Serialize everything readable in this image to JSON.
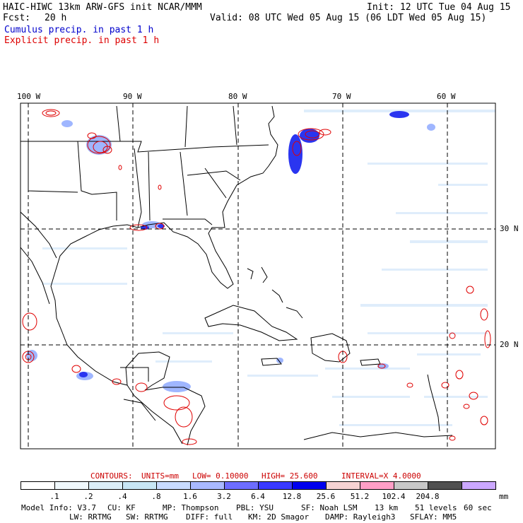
{
  "header": {
    "title_left": "HAIC-HIWC 13km ARW-GFS init   NCAR/MMM",
    "init": "Init: 12 UTC Tue 04 Aug 15",
    "fcst_label": "Fcst:",
    "fcst_value": "20 h",
    "valid": "Valid: 08 UTC Wed 05 Aug 15 (06 LDT Wed 05 Aug 15)",
    "legend_cumulus": "Cumulus precip. in past 1 h",
    "legend_explicit": "Explicit precip. in past 1 h"
  },
  "colors": {
    "cumulus_text": "#0000cc",
    "explicit_text": "#dd0000",
    "contour": "#e00000",
    "precip_light": "#dcecfb",
    "precip_mid": "#9fb6ff",
    "precip_heavy": "#2a35f0"
  },
  "axes": {
    "lon_labels": [
      "100 W",
      "90 W",
      "80 W",
      "70 W",
      "60 W"
    ],
    "lat_labels": [
      "30 N",
      "20 N"
    ]
  },
  "contours_line": {
    "label": "CONTOURS:",
    "units": "UNITS=mm",
    "low": "LOW= 0.10000",
    "high": "HIGH=  25.600",
    "interval": "INTERVAL=X  4.0000"
  },
  "color_scale": {
    "colors": [
      "#ffffff",
      "#f0f8fc",
      "#dbeef8",
      "#c8e6f5",
      "#c9dbff",
      "#a9b9ff",
      "#6d6dff",
      "#3a3aff",
      "#0000ee",
      "#f6d3d3",
      "#ff9fc7",
      "#c8c8c8",
      "#505050",
      "#cca8ff"
    ],
    "ticks": [
      ".1",
      ".2",
      ".4",
      ".8",
      "1.6",
      "3.2",
      "6.4",
      "12.8",
      "25.6",
      "51.2",
      "102.4",
      "204.8"
    ],
    "unit": "mm"
  },
  "footer": {
    "line1": [
      "Model Info: V3.7",
      "CU: KF",
      "MP: Thompson",
      "PBL: YSU",
      "SF: Noah LSM",
      "13 km",
      "51 levels",
      "60 sec"
    ],
    "line2": [
      "LW: RRTMG",
      "SW: RRTMG",
      "DIFF: full",
      "KM: 2D Smagor",
      "DAMP: Rayleigh3",
      "SFLAY: MM5"
    ]
  }
}
